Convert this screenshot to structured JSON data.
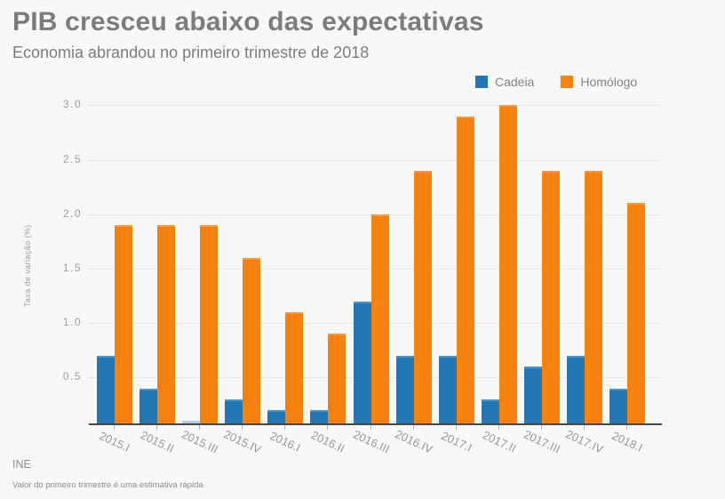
{
  "header": {
    "title": "PIB cresceu abaixo das expectativas",
    "subtitle": "Economia abrandou no primeiro trimestre de 2018"
  },
  "legend": [
    {
      "label": "Cadeia",
      "color": "#2377b4"
    },
    {
      "label": "Homólogo",
      "color": "#fa800f"
    }
  ],
  "chart_data": {
    "type": "bar",
    "title": "PIB cresceu abaixo das expectativas",
    "subtitle": "Economia abrandou no primeiro trimestre de 2018",
    "categories": [
      "2015.I",
      "2015.II",
      "2015.III",
      "2015.IV",
      "2016.I",
      "2016.II",
      "2016.III",
      "2016.IV",
      "2017.I",
      "2017.II",
      "2017.III",
      "2017.IV",
      "2018.I"
    ],
    "series": [
      {
        "name": "Cadeia",
        "color": "#2377b4",
        "values": [
          0.7,
          0.4,
          0.0,
          0.3,
          0.2,
          0.2,
          1.2,
          0.7,
          0.7,
          0.3,
          0.6,
          0.7,
          0.4
        ]
      },
      {
        "name": "Homólogo",
        "color": "#fa800f",
        "values": [
          1.9,
          1.9,
          1.9,
          1.6,
          1.1,
          0.9,
          2.0,
          2.4,
          2.9,
          3.0,
          2.4,
          2.4,
          2.1
        ]
      }
    ],
    "xlabel": "",
    "ylabel": "Taxa de variação (%)",
    "ylim": [
      0,
      3.0
    ],
    "yticks": [
      0.5,
      1.0,
      1.5,
      2.0,
      2.5,
      3.0
    ],
    "ytick_labels": [
      "0.5",
      "1.0",
      "1.5",
      "2.0",
      "2.5",
      "3.0"
    ],
    "grid": "horizontal-dotted",
    "legend_position": "top-right",
    "zero_bar_color": "#aecde5"
  },
  "footer": {
    "source": "INE",
    "note": "Valor do primeiro trimestre é uma estimativa rápida"
  }
}
